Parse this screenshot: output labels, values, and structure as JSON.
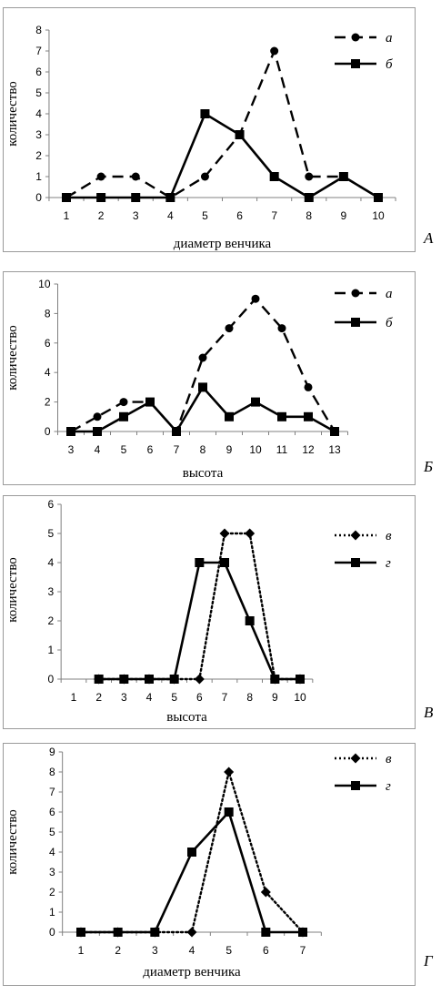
{
  "chart_data": [
    {
      "panel_label": "А",
      "type": "line",
      "xlabel": "диаметр венчика",
      "ylabel": "количество",
      "categories": [
        "1",
        "2",
        "3",
        "4",
        "5",
        "6",
        "7",
        "8",
        "9",
        "10"
      ],
      "ylim": [
        0,
        8
      ],
      "yticks": [
        0,
        1,
        2,
        3,
        4,
        5,
        6,
        7,
        8
      ],
      "grid": false,
      "legend_position": "top-right",
      "series": [
        {
          "name": "а",
          "style": "dashed",
          "marker": "circle",
          "color": "#000000",
          "values": [
            0,
            1,
            1,
            0,
            1,
            3,
            7,
            1,
            1,
            0
          ]
        },
        {
          "name": "б",
          "style": "solid",
          "marker": "square",
          "color": "#000000",
          "values": [
            0,
            0,
            0,
            0,
            4,
            3,
            1,
            0,
            1,
            0
          ]
        }
      ]
    },
    {
      "panel_label": "Б",
      "type": "line",
      "xlabel": "высота",
      "ylabel": "количество",
      "categories": [
        "3",
        "4",
        "5",
        "6",
        "7",
        "8",
        "9",
        "10",
        "11",
        "12",
        "13"
      ],
      "ylim": [
        0,
        10
      ],
      "yticks": [
        0,
        2,
        4,
        6,
        8,
        10
      ],
      "grid": false,
      "legend_position": "top-right",
      "series": [
        {
          "name": "а",
          "style": "dashed",
          "marker": "circle",
          "color": "#000000",
          "values": [
            0,
            1,
            2,
            2,
            0,
            5,
            7,
            9,
            7,
            3,
            0
          ]
        },
        {
          "name": "б",
          "style": "solid",
          "marker": "square",
          "color": "#000000",
          "values": [
            0,
            0,
            1,
            2,
            0,
            3,
            1,
            2,
            1,
            1,
            0
          ]
        }
      ]
    },
    {
      "panel_label": "В",
      "type": "line",
      "xlabel": "высота",
      "ylabel": "количество",
      "categories": [
        "1",
        "2",
        "3",
        "4",
        "5",
        "6",
        "7",
        "8",
        "9",
        "10"
      ],
      "ylim": [
        0,
        6
      ],
      "yticks": [
        0,
        1,
        2,
        3,
        4,
        5,
        6
      ],
      "grid": false,
      "legend_position": "top-right",
      "series": [
        {
          "name": "в",
          "style": "dotted",
          "marker": "diamond",
          "color": "#000000",
          "values": [
            null,
            0,
            0,
            0,
            0,
            0,
            5,
            5,
            0,
            0
          ]
        },
        {
          "name": "г",
          "style": "solid",
          "marker": "square",
          "color": "#000000",
          "values": [
            null,
            0,
            0,
            0,
            0,
            4,
            4,
            2,
            0,
            0
          ]
        }
      ]
    },
    {
      "panel_label": "Г",
      "type": "line",
      "xlabel": "диаметр венчика",
      "ylabel": "количество",
      "categories": [
        "1",
        "2",
        "3",
        "4",
        "5",
        "6",
        "7"
      ],
      "ylim": [
        0,
        9
      ],
      "yticks": [
        0,
        1,
        2,
        3,
        4,
        5,
        6,
        7,
        8,
        9
      ],
      "grid": false,
      "legend_position": "top-right",
      "series": [
        {
          "name": "в",
          "style": "dotted",
          "marker": "diamond",
          "color": "#000000",
          "values": [
            0,
            0,
            0,
            0,
            8,
            2,
            0
          ]
        },
        {
          "name": "г",
          "style": "solid",
          "marker": "square",
          "color": "#000000",
          "values": [
            0,
            0,
            0,
            4,
            6,
            0,
            0
          ]
        }
      ]
    }
  ]
}
